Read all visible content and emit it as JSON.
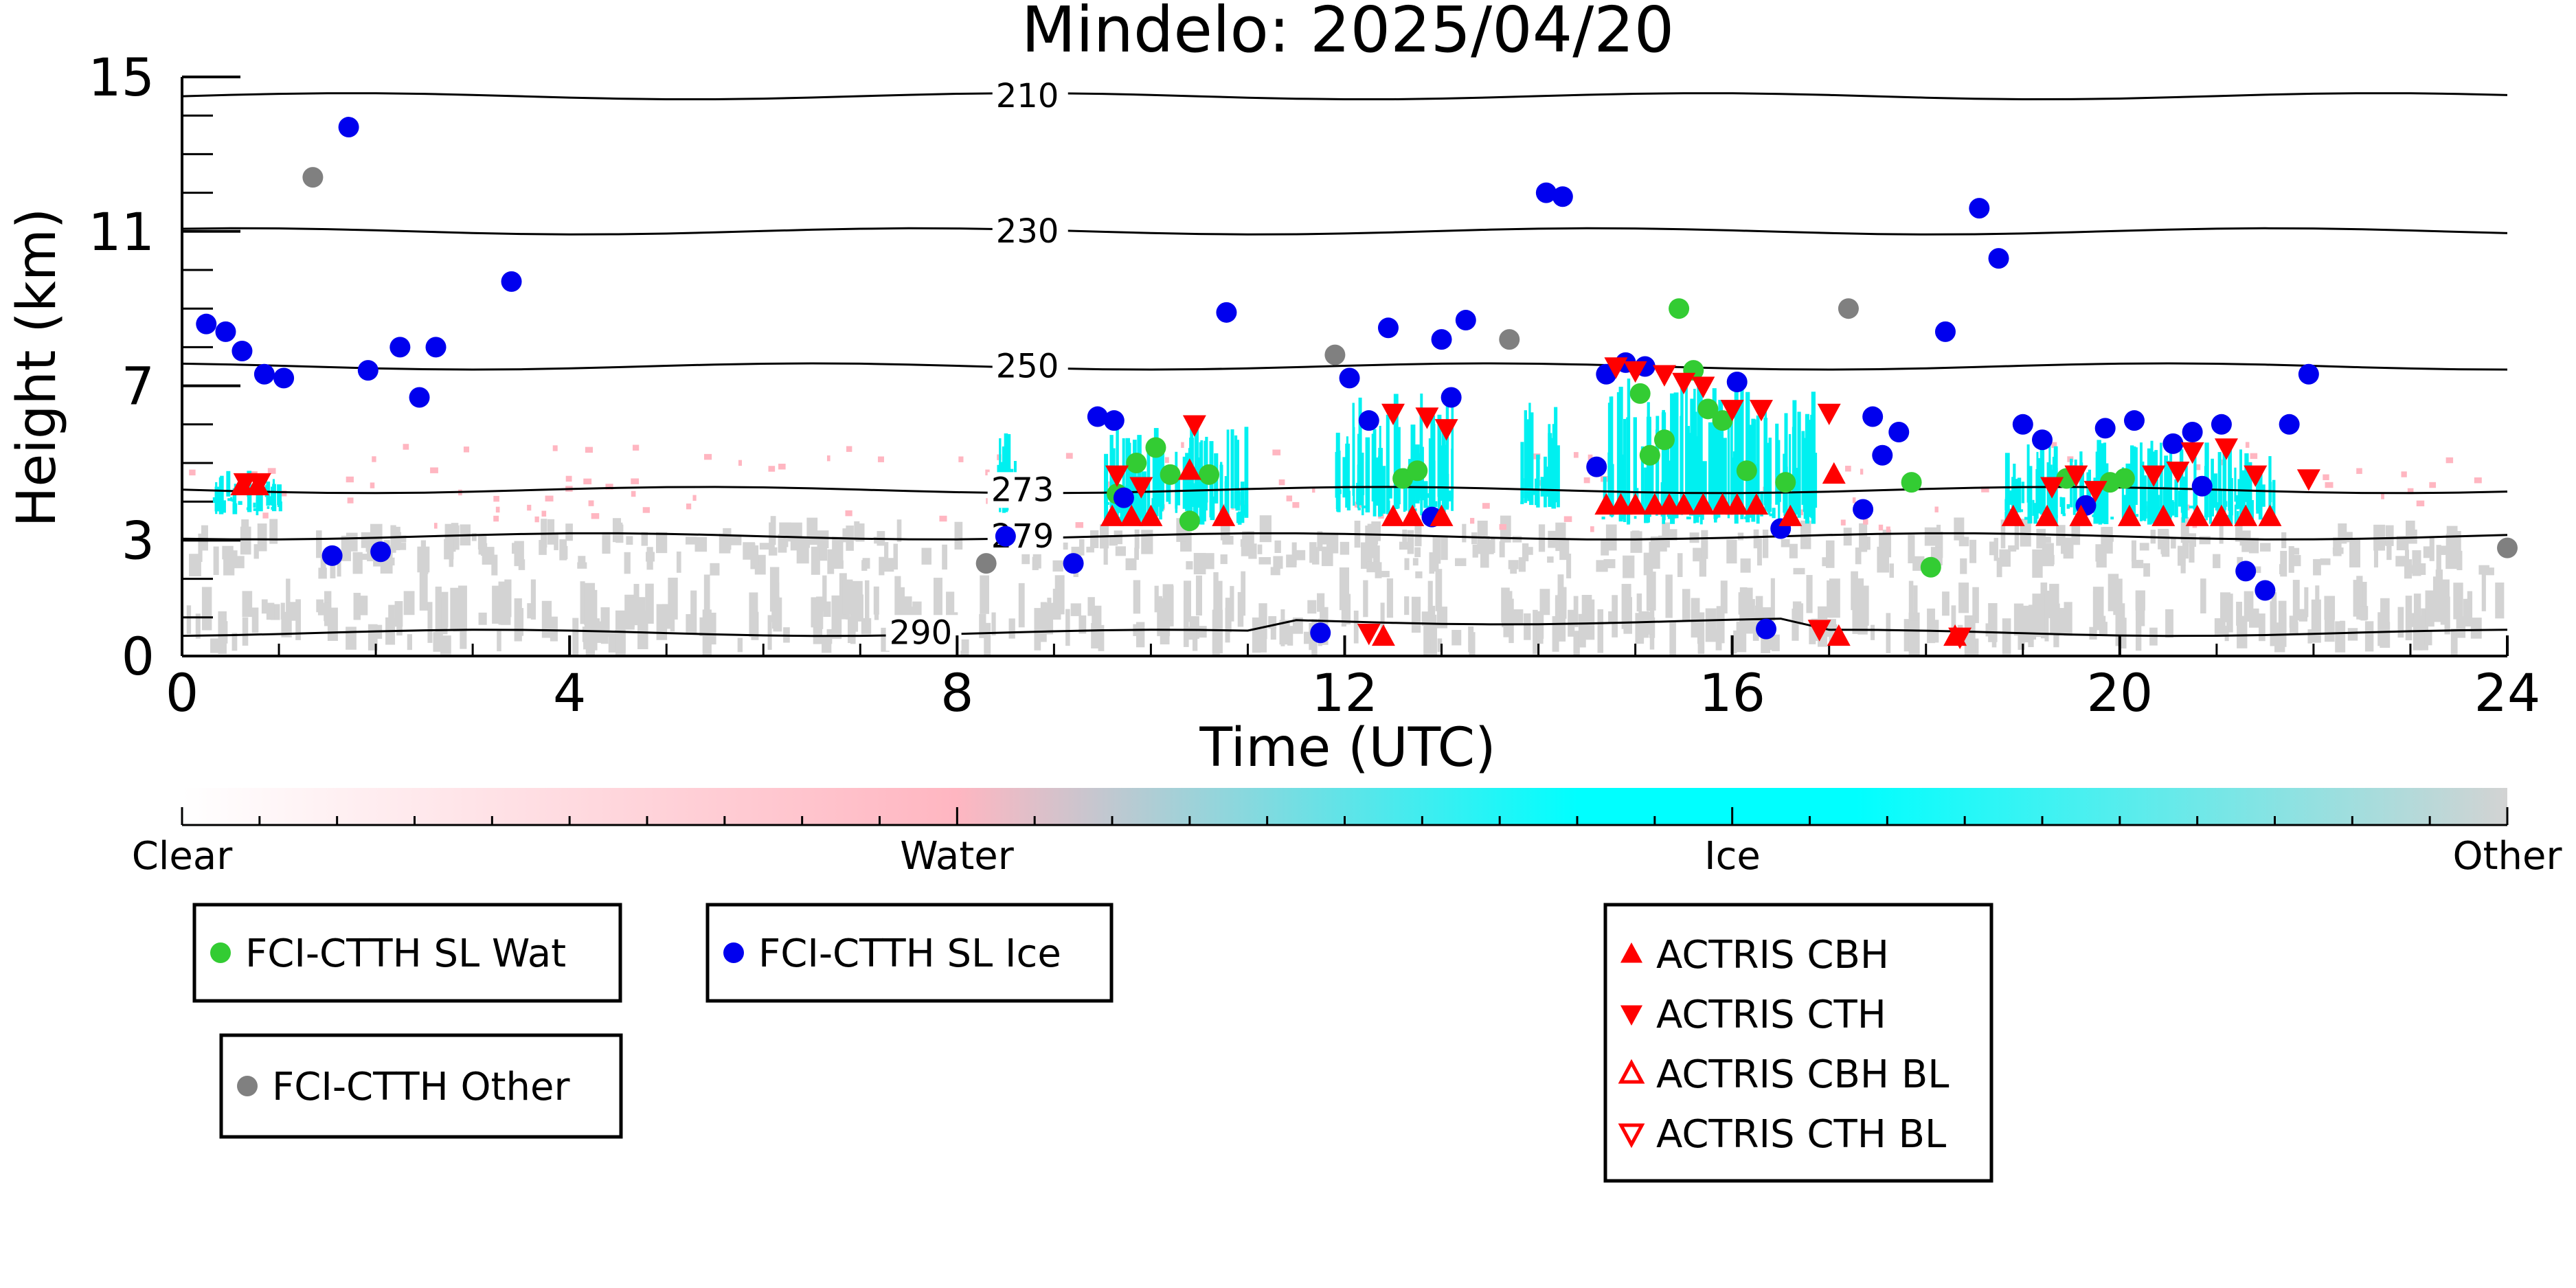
{
  "chart_data": {
    "type": "scatter",
    "title": "Mindelo: 2025/04/20",
    "xlabel": "Time (UTC)",
    "ylabel": "Height (km)",
    "xlim": [
      0,
      24
    ],
    "ylim": [
      0,
      15
    ],
    "x_ticks": [
      0,
      4,
      8,
      12,
      16,
      20,
      24
    ],
    "y_ticks": [
      0,
      3,
      7,
      11,
      15
    ],
    "colorbar": {
      "labels": [
        "Clear",
        "Water",
        "Ice",
        "Other"
      ],
      "colors": [
        "#ffffff",
        "#ffb6c1",
        "#00ffff",
        "#d3d3d3"
      ]
    },
    "temperature_contours": [
      {
        "label": "210",
        "height": 14.5
      },
      {
        "label": "230",
        "height": 11.0
      },
      {
        "label": "250",
        "height": 7.5
      },
      {
        "label": "273",
        "height": 4.3
      },
      {
        "label": "279",
        "height": 3.1
      },
      {
        "label": "290",
        "height": 0.6
      }
    ],
    "series": [
      {
        "name": "FCI-CTTH SL Wat",
        "marker": "circle",
        "color": "#33cc33",
        "points": [
          [
            9.65,
            4.2
          ],
          [
            9.85,
            5.0
          ],
          [
            10.05,
            5.4
          ],
          [
            10.2,
            4.7
          ],
          [
            10.4,
            3.5
          ],
          [
            10.6,
            4.7
          ],
          [
            12.6,
            4.6
          ],
          [
            12.75,
            4.8
          ],
          [
            15.05,
            6.8
          ],
          [
            15.15,
            5.2
          ],
          [
            15.3,
            5.6
          ],
          [
            15.45,
            9.0
          ],
          [
            15.6,
            7.4
          ],
          [
            15.75,
            6.4
          ],
          [
            15.9,
            6.1
          ],
          [
            16.15,
            4.8
          ],
          [
            16.55,
            4.5
          ],
          [
            17.85,
            4.5
          ],
          [
            18.05,
            2.3
          ],
          [
            19.45,
            4.6
          ],
          [
            19.9,
            4.5
          ],
          [
            20.05,
            4.6
          ]
        ]
      },
      {
        "name": "FCI-CTTH SL Ice",
        "marker": "circle",
        "color": "#0000ee",
        "points": [
          [
            0.25,
            8.6
          ],
          [
            0.45,
            8.4
          ],
          [
            0.62,
            7.9
          ],
          [
            0.85,
            7.3
          ],
          [
            1.05,
            7.2
          ],
          [
            1.55,
            2.6
          ],
          [
            1.72,
            13.7
          ],
          [
            1.92,
            7.4
          ],
          [
            2.05,
            2.7
          ],
          [
            2.25,
            8.0
          ],
          [
            2.45,
            6.7
          ],
          [
            2.62,
            8.0
          ],
          [
            3.4,
            9.7
          ],
          [
            8.5,
            3.1
          ],
          [
            9.2,
            2.4
          ],
          [
            9.45,
            6.2
          ],
          [
            9.62,
            6.1
          ],
          [
            9.72,
            4.1
          ],
          [
            10.78,
            8.9
          ],
          [
            11.75,
            0.6
          ],
          [
            12.05,
            7.2
          ],
          [
            12.25,
            6.1
          ],
          [
            12.45,
            8.5
          ],
          [
            12.9,
            3.6
          ],
          [
            13.0,
            8.2
          ],
          [
            13.1,
            6.7
          ],
          [
            13.25,
            8.7
          ],
          [
            14.08,
            12.0
          ],
          [
            14.25,
            11.9
          ],
          [
            14.6,
            4.9
          ],
          [
            14.7,
            7.3
          ],
          [
            14.9,
            7.6
          ],
          [
            15.1,
            7.5
          ],
          [
            16.05,
            7.1
          ],
          [
            16.35,
            0.7
          ],
          [
            16.5,
            3.3
          ],
          [
            17.35,
            3.8
          ],
          [
            17.45,
            6.2
          ],
          [
            17.55,
            5.2
          ],
          [
            17.72,
            5.8
          ],
          [
            18.2,
            8.4
          ],
          [
            18.55,
            11.6
          ],
          [
            18.75,
            10.3
          ],
          [
            19.0,
            6.0
          ],
          [
            19.2,
            5.6
          ],
          [
            19.65,
            3.9
          ],
          [
            19.85,
            5.9
          ],
          [
            20.15,
            6.1
          ],
          [
            20.55,
            5.5
          ],
          [
            20.75,
            5.8
          ],
          [
            20.85,
            4.4
          ],
          [
            21.05,
            6.0
          ],
          [
            21.3,
            2.2
          ],
          [
            21.5,
            1.7
          ],
          [
            21.75,
            6.0
          ],
          [
            21.95,
            7.3
          ]
        ]
      },
      {
        "name": "FCI-CTTH Other",
        "marker": "circle",
        "color": "#808080",
        "points": [
          [
            1.35,
            12.4
          ],
          [
            8.3,
            2.4
          ],
          [
            11.9,
            7.8
          ],
          [
            13.7,
            8.2
          ],
          [
            17.2,
            9.0
          ],
          [
            24.0,
            2.8
          ]
        ]
      },
      {
        "name": "ACTRIS CBH",
        "marker": "triangle-up",
        "color": "#ff0000",
        "points": [
          [
            0.62,
            4.4
          ],
          [
            0.78,
            4.4
          ],
          [
            9.6,
            3.6
          ],
          [
            9.8,
            3.6
          ],
          [
            10.0,
            3.6
          ],
          [
            10.4,
            4.8
          ],
          [
            10.75,
            3.6
          ],
          [
            12.5,
            3.6
          ],
          [
            12.7,
            3.6
          ],
          [
            13.0,
            3.6
          ],
          [
            14.7,
            3.9
          ],
          [
            14.85,
            3.9
          ],
          [
            15.0,
            3.9
          ],
          [
            15.2,
            3.9
          ],
          [
            15.35,
            3.9
          ],
          [
            15.5,
            3.9
          ],
          [
            15.7,
            3.9
          ],
          [
            15.9,
            3.9
          ],
          [
            16.05,
            3.9
          ],
          [
            16.25,
            3.9
          ],
          [
            16.6,
            3.6
          ],
          [
            17.05,
            4.7
          ],
          [
            18.9,
            3.6
          ],
          [
            19.25,
            3.6
          ],
          [
            19.6,
            3.6
          ],
          [
            20.1,
            3.6
          ],
          [
            20.45,
            3.6
          ],
          [
            20.8,
            3.6
          ],
          [
            21.05,
            3.6
          ],
          [
            21.3,
            3.6
          ],
          [
            21.55,
            3.6
          ],
          [
            12.4,
            0.5
          ],
          [
            17.1,
            0.5
          ],
          [
            18.3,
            0.5
          ]
        ]
      },
      {
        "name": "ACTRIS CTH",
        "marker": "triangle-down",
        "color": "#ff0000",
        "points": [
          [
            0.65,
            4.5
          ],
          [
            0.8,
            4.5
          ],
          [
            9.65,
            4.7
          ],
          [
            9.9,
            4.4
          ],
          [
            10.45,
            6.0
          ],
          [
            12.5,
            6.3
          ],
          [
            12.85,
            6.2
          ],
          [
            13.05,
            5.9
          ],
          [
            14.8,
            7.5
          ],
          [
            15.0,
            7.4
          ],
          [
            15.3,
            7.3
          ],
          [
            15.5,
            7.1
          ],
          [
            15.7,
            7.0
          ],
          [
            16.0,
            6.4
          ],
          [
            16.3,
            6.4
          ],
          [
            17.0,
            6.3
          ],
          [
            19.3,
            4.4
          ],
          [
            19.55,
            4.7
          ],
          [
            19.75,
            4.3
          ],
          [
            20.35,
            4.7
          ],
          [
            20.6,
            4.8
          ],
          [
            20.75,
            5.3
          ],
          [
            21.1,
            5.4
          ],
          [
            21.4,
            4.7
          ],
          [
            21.95,
            4.6
          ],
          [
            12.25,
            0.6
          ],
          [
            16.9,
            0.7
          ],
          [
            18.35,
            0.5
          ]
        ]
      },
      {
        "name": "ACTRIS CBH BL",
        "marker": "triangle-up-open",
        "color": "#ff0000",
        "points": []
      },
      {
        "name": "ACTRIS CTH BL",
        "marker": "triangle-down-open",
        "color": "#ff0000",
        "points": []
      }
    ],
    "legend_groups": [
      [
        "FCI-CTTH SL Wat"
      ],
      [
        "FCI-CTTH SL Ice"
      ],
      [
        "FCI-CTTH Other"
      ],
      [
        "ACTRIS CBH",
        "ACTRIS CTH",
        "ACTRIS CBH BL",
        "ACTRIS CTH BL"
      ]
    ]
  }
}
